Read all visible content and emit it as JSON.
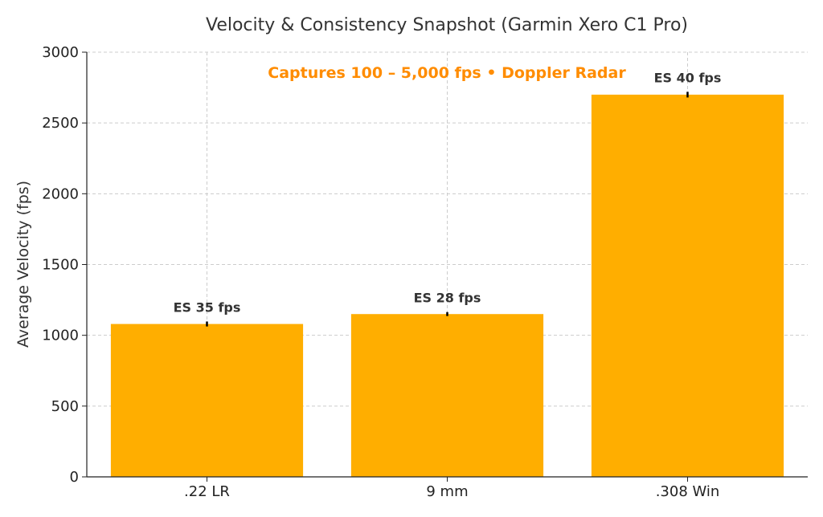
{
  "chart_data": {
    "type": "bar",
    "title": "Velocity & Consistency Snapshot (Garmin Xero C1 Pro)",
    "annotation": "Captures 100 – 5,000 fps • Doppler Radar",
    "xlabel": "",
    "ylabel": "Average Velocity (fps)",
    "categories": [
      ".22 LR",
      "9 mm",
      ".308 Win"
    ],
    "values": [
      1080,
      1150,
      2700
    ],
    "error": [
      35,
      28,
      40
    ],
    "bar_labels": [
      "ES 35 fps",
      "ES 28 fps",
      "ES 40 fps"
    ],
    "ylim": [
      0,
      3000
    ],
    "yticks": [
      0,
      500,
      1000,
      1500,
      2000,
      2500,
      3000
    ],
    "grid": true,
    "colors": {
      "bar": "#FFAE00",
      "annotation": "#FF8C00",
      "error_bar": "#000000"
    }
  }
}
